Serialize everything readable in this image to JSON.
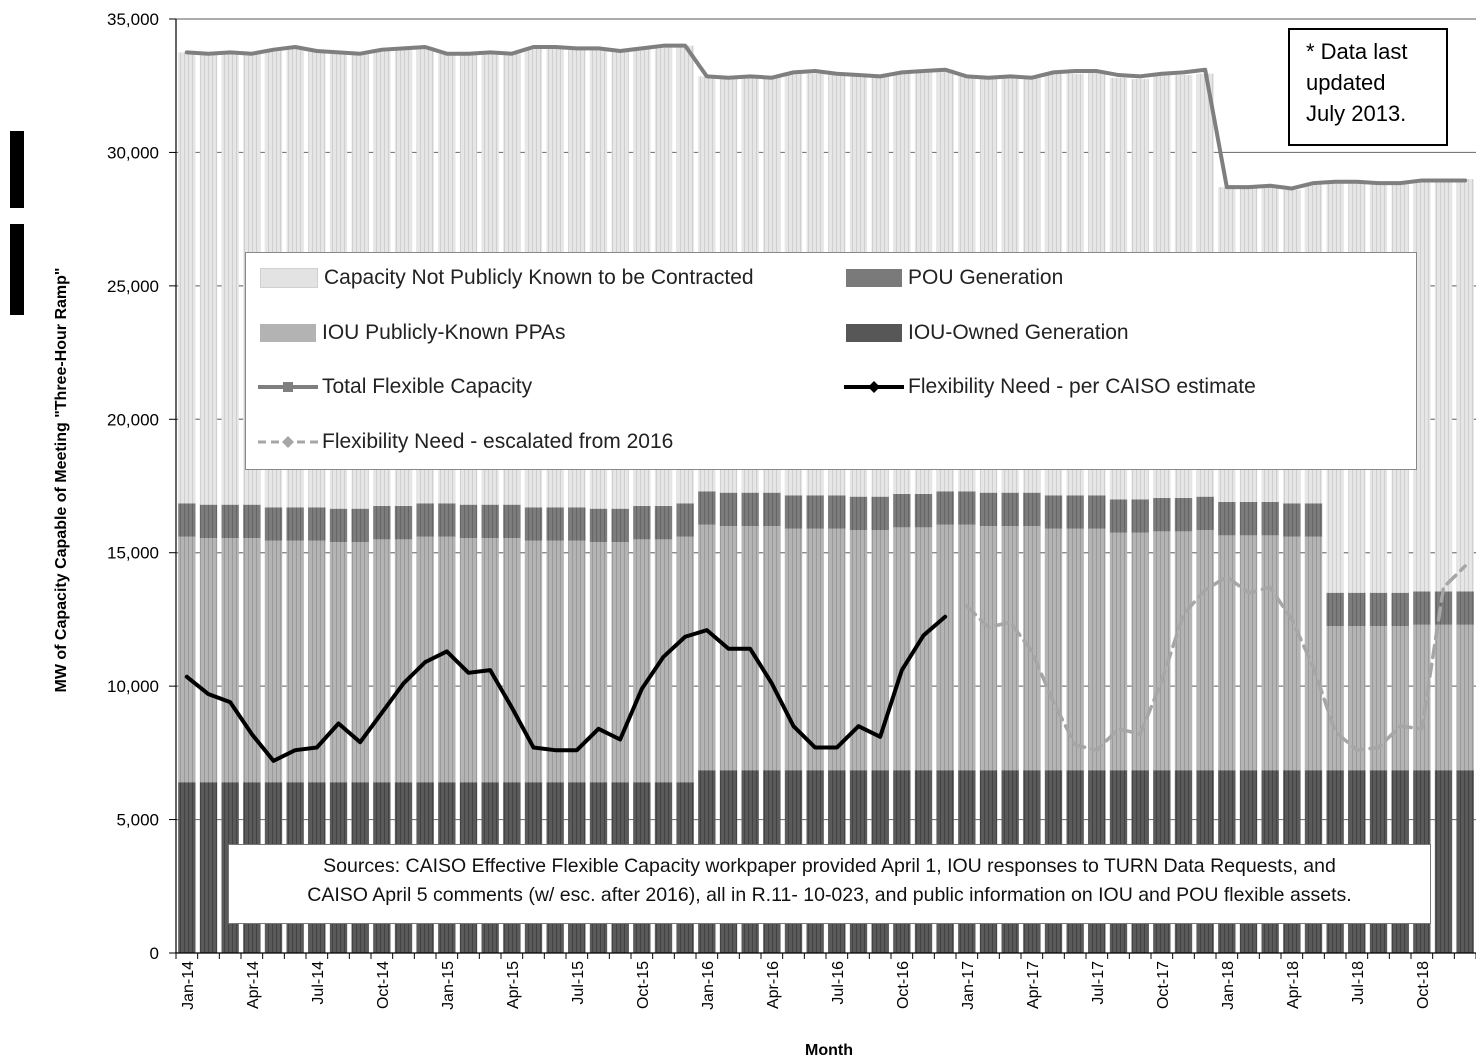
{
  "note": {
    "lines": [
      "*  Data last",
      "updated",
      "July 2013."
    ]
  },
  "sources": {
    "lines": [
      "Sources:  CAISO Effective Flexible Capacity workpaper provided April 1, IOU responses to TURN Data Requests, and",
      "CAISO  April 5 comments  (w/ esc. after 2016), all in R.11- 10-023, and  public information on IOU and POU flexible assets."
    ]
  },
  "legend": {
    "not_contracted": "Capacity  Not Publicly  Known to  be Contracted",
    "pou": "POU Generation",
    "iou_ppa": "IOU Publicly-Known PPAs",
    "iou_owned": "IOU-Owned Generation",
    "total": "Total Flexible Capacity",
    "need_caiso": "Flexibility Need - per CAISO estimate",
    "need_escalated": "Flexibility Need - escalated from 2016"
  },
  "colors": {
    "not_contracted": "#e3e3e3",
    "iou_ppa": "#b3b3b3",
    "pou": "#7a7a7a",
    "iou_owned": "#575757",
    "total": "#7f7f7f",
    "need_caiso": "#000000",
    "need_escalated": "#a6a6a6"
  },
  "chart_data": {
    "type": "bar",
    "stacked": true,
    "xlabel": "Month",
    "ylabel": "MW of Capacity Capable of Meeting \"Three-Hour Ramp\"",
    "ylim": [
      0,
      35000
    ],
    "yticks": [
      "0",
      "5,000",
      "10,000",
      "15,000",
      "20,000",
      "25,000",
      "30,000",
      "35,000"
    ],
    "categories": [
      "Jan-14",
      "Feb-14",
      "Mar-14",
      "Apr-14",
      "May-14",
      "Jun-14",
      "Jul-14",
      "Aug-14",
      "Sep-14",
      "Oct-14",
      "Nov-14",
      "Dec-14",
      "Jan-15",
      "Feb-15",
      "Mar-15",
      "Apr-15",
      "May-15",
      "Jun-15",
      "Jul-15",
      "Aug-15",
      "Sep-15",
      "Oct-15",
      "Nov-15",
      "Dec-15",
      "Jan-16",
      "Feb-16",
      "Mar-16",
      "Apr-16",
      "May-16",
      "Jun-16",
      "Jul-16",
      "Aug-16",
      "Sep-16",
      "Oct-16",
      "Nov-16",
      "Dec-16",
      "Jan-17",
      "Feb-17",
      "Mar-17",
      "Apr-17",
      "May-17",
      "Jun-17",
      "Jul-17",
      "Aug-17",
      "Sep-17",
      "Oct-17",
      "Nov-17",
      "Dec-17",
      "Jan-18",
      "Feb-18",
      "Mar-18",
      "Apr-18",
      "May-18",
      "Jun-18",
      "Jul-18",
      "Aug-18",
      "Sep-18",
      "Oct-18",
      "Nov-18",
      "Dec-18"
    ],
    "tick_labels": [
      {
        "i": 0,
        "label": "Jan-14"
      },
      {
        "i": 3,
        "label": "Apr-14"
      },
      {
        "i": 6,
        "label": "Jul-14"
      },
      {
        "i": 9,
        "label": "Oct-14"
      },
      {
        "i": 12,
        "label": "Jan-15"
      },
      {
        "i": 15,
        "label": "Apr-15"
      },
      {
        "i": 18,
        "label": "Jul-15"
      },
      {
        "i": 21,
        "label": "Oct-15"
      },
      {
        "i": 24,
        "label": "Jan-16"
      },
      {
        "i": 27,
        "label": "Apr-16"
      },
      {
        "i": 30,
        "label": "Jul-16"
      },
      {
        "i": 33,
        "label": "Oct-16"
      },
      {
        "i": 36,
        "label": "Jan-17"
      },
      {
        "i": 39,
        "label": "Apr-17"
      },
      {
        "i": 42,
        "label": "Jul-17"
      },
      {
        "i": 45,
        "label": "Oct-17"
      },
      {
        "i": 48,
        "label": "Jan-18"
      },
      {
        "i": 51,
        "label": "Apr-18"
      },
      {
        "i": 54,
        "label": "Jul-18"
      },
      {
        "i": 57,
        "label": "Oct-18"
      }
    ],
    "series": [
      {
        "name": "IOU-Owned Generation",
        "key": "iou_owned",
        "values": [
          6400,
          6400,
          6400,
          6400,
          6400,
          6400,
          6400,
          6400,
          6400,
          6400,
          6400,
          6400,
          6400,
          6400,
          6400,
          6400,
          6400,
          6400,
          6400,
          6400,
          6400,
          6400,
          6400,
          6400,
          6850,
          6850,
          6850,
          6850,
          6850,
          6850,
          6850,
          6850,
          6850,
          6850,
          6850,
          6850,
          6850,
          6850,
          6850,
          6850,
          6850,
          6850,
          6850,
          6850,
          6850,
          6850,
          6850,
          6850,
          6850,
          6850,
          6850,
          6850,
          6850,
          6850,
          6850,
          6850,
          6850,
          6850,
          6850,
          6850
        ]
      },
      {
        "name": "IOU Publicly-Known PPAs",
        "key": "iou_ppa",
        "values": [
          9200,
          9150,
          9150,
          9150,
          9050,
          9050,
          9050,
          9000,
          9000,
          9100,
          9100,
          9200,
          9200,
          9150,
          9150,
          9150,
          9050,
          9050,
          9050,
          9000,
          9000,
          9100,
          9100,
          9200,
          9200,
          9150,
          9150,
          9150,
          9050,
          9050,
          9050,
          9000,
          9000,
          9100,
          9100,
          9200,
          9200,
          9150,
          9150,
          9150,
          9050,
          9050,
          9050,
          8900,
          8900,
          8950,
          8950,
          9000,
          8800,
          8800,
          8800,
          8750,
          8750,
          5400,
          5400,
          5400,
          5400,
          5450,
          5450,
          5450
        ]
      },
      {
        "name": "POU Generation",
        "key": "pou",
        "values": [
          1250,
          1250,
          1250,
          1250,
          1250,
          1250,
          1250,
          1250,
          1250,
          1250,
          1250,
          1250,
          1250,
          1250,
          1250,
          1250,
          1250,
          1250,
          1250,
          1250,
          1250,
          1250,
          1250,
          1250,
          1250,
          1250,
          1250,
          1250,
          1250,
          1250,
          1250,
          1250,
          1250,
          1250,
          1250,
          1250,
          1250,
          1250,
          1250,
          1250,
          1250,
          1250,
          1250,
          1250,
          1250,
          1250,
          1250,
          1250,
          1250,
          1250,
          1250,
          1250,
          1250,
          1250,
          1250,
          1250,
          1250,
          1250,
          1250,
          1250
        ]
      },
      {
        "name": "Capacity  Not Publicly  Known to  be Contracted",
        "key": "not_contracted",
        "values": [
          16900,
          16900,
          16950,
          16900,
          17150,
          17250,
          17100,
          17100,
          17050,
          17100,
          17150,
          17100,
          16850,
          16900,
          16900,
          16900,
          17250,
          17250,
          17200,
          17250,
          17150,
          17150,
          17250,
          17150,
          15550,
          15550,
          15600,
          15550,
          15850,
          15800,
          15800,
          15800,
          15750,
          15800,
          15850,
          15800,
          15550,
          15550,
          15600,
          15550,
          15850,
          15800,
          15850,
          15800,
          15750,
          15850,
          15850,
          15850,
          11800,
          11800,
          11850,
          11750,
          11950,
          15400,
          15400,
          15350,
          15350,
          15400,
          15450,
          15450
        ]
      }
    ],
    "lines": [
      {
        "name": "Total Flexible Capacity",
        "key": "total",
        "values": [
          33750,
          33700,
          33750,
          33700,
          33850,
          33950,
          33800,
          33750,
          33700,
          33850,
          33900,
          33950,
          33700,
          33700,
          33750,
          33700,
          33950,
          33950,
          33900,
          33900,
          33800,
          33900,
          34000,
          34000,
          32850,
          32800,
          32850,
          32800,
          33000,
          33050,
          32950,
          32900,
          32850,
          33000,
          33050,
          33100,
          32850,
          32800,
          32850,
          32800,
          33000,
          33050,
          33050,
          32900,
          32850,
          32950,
          33000,
          33100,
          28700,
          28700,
          28750,
          28650,
          28850,
          28900,
          28900,
          28850,
          28850,
          28950,
          28950,
          28950
        ]
      },
      {
        "name": "Flexibility Need - per CAISO estimate",
        "key": "need_caiso",
        "values": [
          10350,
          9700,
          9400,
          8200,
          7200,
          7600,
          7700,
          8600,
          7900,
          9000,
          10100,
          10900,
          11300,
          10500,
          10600,
          9200,
          7700,
          7600,
          7600,
          8400,
          8000,
          9900,
          11100,
          11850,
          12100,
          11400,
          11400,
          10100,
          8500,
          7700,
          7700,
          8500,
          8100,
          10600,
          11900,
          12600,
          null,
          null,
          null,
          null,
          null,
          null,
          null,
          null,
          null,
          null,
          null,
          null,
          null,
          null,
          null,
          null,
          null,
          null,
          null,
          null,
          null,
          null,
          null,
          null
        ]
      },
      {
        "name": "Flexibility Need - escalated from 2016",
        "key": "need_escalated",
        "values": [
          null,
          null,
          null,
          null,
          null,
          null,
          null,
          null,
          null,
          null,
          null,
          null,
          null,
          null,
          null,
          null,
          null,
          null,
          null,
          null,
          null,
          null,
          null,
          null,
          null,
          null,
          null,
          null,
          null,
          null,
          null,
          null,
          null,
          null,
          null,
          null,
          13000,
          12200,
          12400,
          11300,
          9400,
          7800,
          7600,
          8400,
          8200,
          10200,
          12700,
          13600,
          14100,
          13500,
          13700,
          12500,
          10700,
          8300,
          7600,
          7700,
          8500,
          8400,
          13700,
          14500
        ]
      }
    ],
    "grid": true,
    "legend_position": "center"
  }
}
